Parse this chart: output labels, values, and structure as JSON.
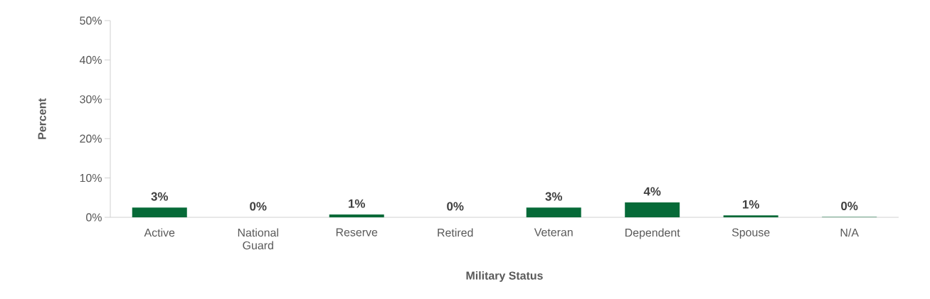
{
  "chart_data": {
    "type": "bar",
    "xlabel": "Military Status",
    "ylabel": "Percent",
    "categories": [
      "Active",
      "National Guard",
      "Reserve",
      "Retired",
      "Veteran",
      "Dependent",
      "Spouse",
      "N/A"
    ],
    "values": [
      2.5,
      0,
      0.7,
      0,
      2.5,
      3.8,
      0.5,
      0.1
    ],
    "value_labels": [
      "3%",
      "0%",
      "1%",
      "0%",
      "3%",
      "4%",
      "1%",
      "0%"
    ],
    "color": "#066a38",
    "ylim": [
      0,
      50
    ],
    "yticks": [
      {
        "value": 0,
        "label": "0%"
      },
      {
        "value": 10,
        "label": "10%"
      },
      {
        "value": 20,
        "label": "20%"
      },
      {
        "value": 30,
        "label": "30%"
      },
      {
        "value": 40,
        "label": "40%"
      },
      {
        "value": 50,
        "label": "50%"
      }
    ],
    "grid": false
  }
}
